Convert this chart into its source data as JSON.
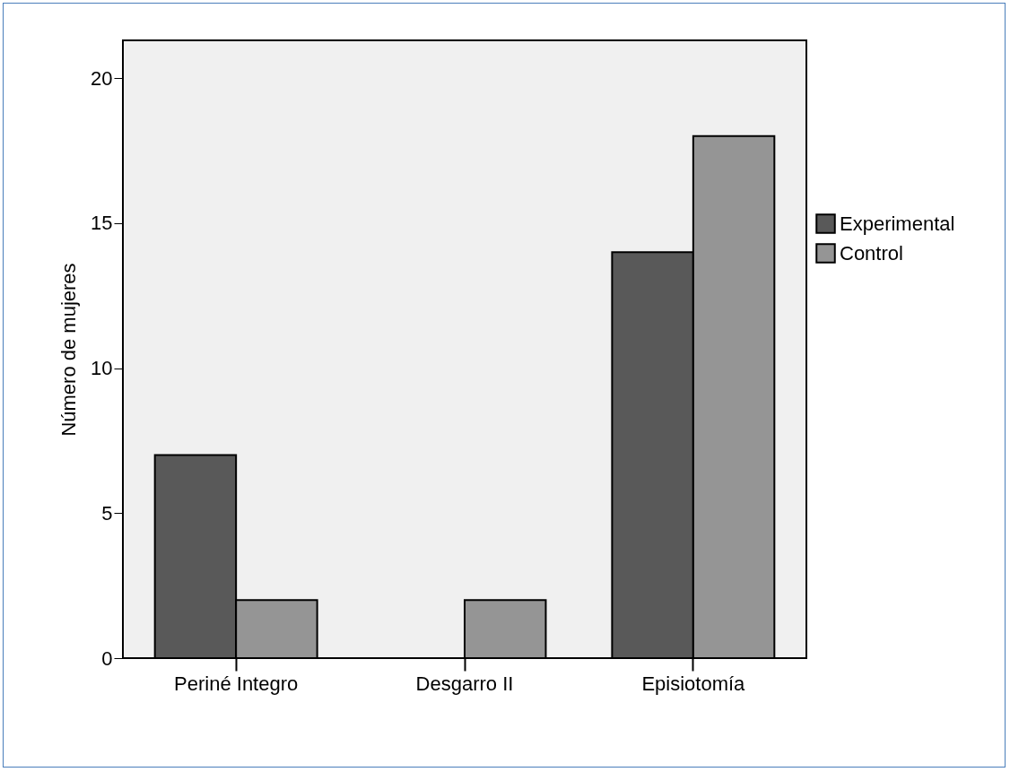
{
  "chart_data": {
    "type": "bar",
    "ylabel": "Número de mujeres",
    "categories": [
      "Periné Integro",
      "Desgarro II",
      "Episiotomía"
    ],
    "series": [
      {
        "name": "Experimental",
        "color": "#595959",
        "values": [
          7,
          0,
          14
        ]
      },
      {
        "name": "Control",
        "color": "#959595",
        "values": [
          2,
          2,
          18
        ]
      }
    ],
    "ylim": [
      0,
      21.3
    ],
    "yticks": [
      0,
      5,
      10,
      15,
      20
    ],
    "grid": false,
    "legend": "right"
  }
}
